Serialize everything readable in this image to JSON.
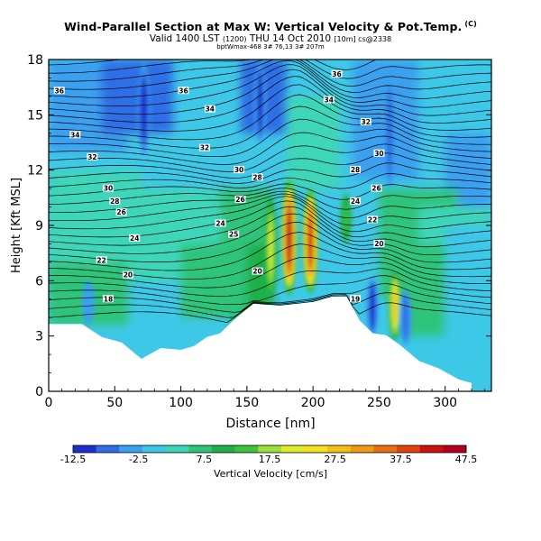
{
  "header": {
    "title": "Wind-Parallel Section at Max W: Vertical Velocity & Pot.Temp.",
    "title_mark": "(C)",
    "subtitle_main": "Valid 1400 LST",
    "subtitle_date_small": "(1200)",
    "subtitle_day": "THU 14 Oct 2010",
    "subtitle_grid": "[10m] cs@2338",
    "info_line": "bptWmax-468 3# 76,13 3# 207m"
  },
  "chart_data": {
    "type": "heatmap",
    "title": "Wind-Parallel Section at Max W: Vertical Velocity & Pot.Temp.",
    "xlabel": "Distance [nm]",
    "ylabel": "Height [Kft MSL]",
    "xlim": [
      0,
      335
    ],
    "ylim": [
      0,
      18
    ],
    "xticks": [
      0,
      50,
      100,
      150,
      200,
      250,
      300
    ],
    "yticks": [
      0,
      3,
      6,
      9,
      12,
      15,
      18
    ],
    "grid": false,
    "colorbar": {
      "label": "Vertical Velocity [cm/s]",
      "tick_labels": [
        "-12.5",
        "-2.5",
        "7.5",
        "17.5",
        "27.5",
        "37.5",
        "47.5"
      ],
      "colors": [
        "#1f2fcf",
        "#2f6ee6",
        "#3aa0f0",
        "#3ec8e8",
        "#3cd6b8",
        "#2ec47a",
        "#1eb04a",
        "#3cc43c",
        "#9adf3a",
        "#dcec2a",
        "#f4e020",
        "#f2c018",
        "#f09a14",
        "#ea6e10",
        "#e2420c",
        "#cc1010",
        "#b00020"
      ]
    },
    "terrain_profile": [
      [
        0,
        3.6
      ],
      [
        25,
        3.6
      ],
      [
        40,
        2.9
      ],
      [
        55,
        2.6
      ],
      [
        70,
        1.7
      ],
      [
        85,
        2.3
      ],
      [
        100,
        2.2
      ],
      [
        110,
        2.4
      ],
      [
        120,
        2.9
      ],
      [
        130,
        3.1
      ],
      [
        140,
        3.8
      ],
      [
        155,
        4.7
      ],
      [
        175,
        4.6
      ],
      [
        200,
        4.8
      ],
      [
        215,
        5.1
      ],
      [
        225,
        5.1
      ],
      [
        235,
        3.8
      ],
      [
        245,
        3.1
      ],
      [
        255,
        3.0
      ],
      [
        265,
        2.5
      ],
      [
        280,
        1.6
      ],
      [
        295,
        1.2
      ],
      [
        310,
        0.6
      ],
      [
        320,
        0.4
      ]
    ],
    "theta_contour_labels": [
      {
        "value": "18",
        "x": 45,
        "y": 5.0
      },
      {
        "value": "19",
        "x": 232,
        "y": 5.0
      },
      {
        "value": "20",
        "x": 60,
        "y": 6.3
      },
      {
        "value": "20",
        "x": 158,
        "y": 6.5
      },
      {
        "value": "20",
        "x": 250,
        "y": 8.0
      },
      {
        "value": "22",
        "x": 40,
        "y": 7.1
      },
      {
        "value": "22",
        "x": 245,
        "y": 9.3
      },
      {
        "value": "24",
        "x": 65,
        "y": 8.3
      },
      {
        "value": "24",
        "x": 130,
        "y": 9.1
      },
      {
        "value": "24",
        "x": 232,
        "y": 10.3
      },
      {
        "value": "25",
        "x": 140,
        "y": 8.5
      },
      {
        "value": "26",
        "x": 55,
        "y": 9.7
      },
      {
        "value": "26",
        "x": 145,
        "y": 10.4
      },
      {
        "value": "26",
        "x": 248,
        "y": 11.0
      },
      {
        "value": "28",
        "x": 50,
        "y": 10.3
      },
      {
        "value": "28",
        "x": 158,
        "y": 11.6
      },
      {
        "value": "28",
        "x": 232,
        "y": 12.0
      },
      {
        "value": "30",
        "x": 45,
        "y": 11.0
      },
      {
        "value": "30",
        "x": 144,
        "y": 12.0
      },
      {
        "value": "30",
        "x": 250,
        "y": 12.9
      },
      {
        "value": "32",
        "x": 33,
        "y": 12.7
      },
      {
        "value": "32",
        "x": 118,
        "y": 13.2
      },
      {
        "value": "32",
        "x": 240,
        "y": 14.6
      },
      {
        "value": "34",
        "x": 20,
        "y": 13.9
      },
      {
        "value": "34",
        "x": 122,
        "y": 15.3
      },
      {
        "value": "34",
        "x": 212,
        "y": 15.8
      },
      {
        "value": "36",
        "x": 8,
        "y": 16.3
      },
      {
        "value": "36",
        "x": 102,
        "y": 16.3
      },
      {
        "value": "36",
        "x": 218,
        "y": 17.2
      }
    ],
    "vertical_velocity_features": [
      {
        "center_x": 182,
        "top": 11.5,
        "bottom": 5.2,
        "peak": 47.5,
        "description_scale": "updraft core"
      },
      {
        "center_x": 198,
        "top": 11.0,
        "bottom": 5.3,
        "peak": 42.5
      },
      {
        "center_x": 168,
        "top": 10.5,
        "bottom": 5.0,
        "peak": 22.5
      },
      {
        "center_x": 225,
        "top": 10.8,
        "bottom": 8.0,
        "peak": 12.5
      },
      {
        "center_x": 262,
        "top": 6.5,
        "bottom": 2.8,
        "peak": 27.5
      },
      {
        "center_x": 245,
        "top": 6.2,
        "bottom": 3.0,
        "peak": -10.0
      },
      {
        "center_x": 270,
        "top": 5.5,
        "bottom": 2.5,
        "peak": -7.5
      },
      {
        "center_x": 72,
        "top": 17.8,
        "bottom": 12.8,
        "peak": -12.5
      },
      {
        "center_x": 160,
        "top": 17.8,
        "bottom": 13.5,
        "peak": -9.0
      },
      {
        "center_x": 258,
        "top": 17.0,
        "bottom": 11.0,
        "peak": -6.0
      },
      {
        "center_x": 30,
        "top": 6.0,
        "bottom": 3.6,
        "peak": -4.0
      }
    ]
  }
}
